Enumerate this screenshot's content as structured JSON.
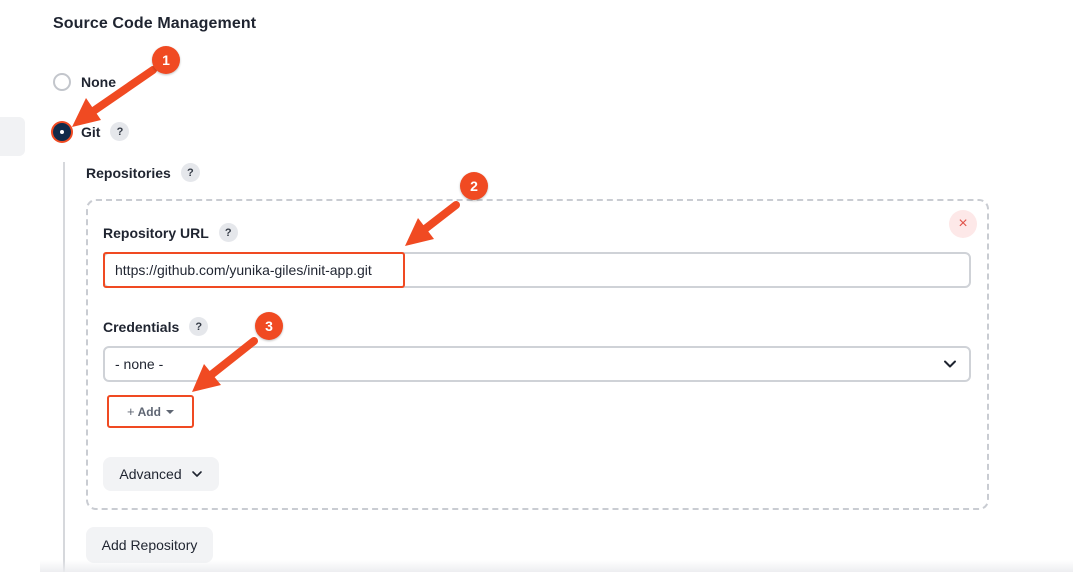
{
  "section": {
    "title": "Source Code Management"
  },
  "scm_options": [
    {
      "label": "None",
      "selected": false
    },
    {
      "label": "Git",
      "selected": true
    }
  ],
  "help_glyph": "?",
  "repositories": {
    "label": "Repositories",
    "repository_url": {
      "label": "Repository URL",
      "value": "https://github.com/yunika-giles/init-app.git"
    },
    "credentials": {
      "label": "Credentials",
      "selected": "- none -",
      "add_label": "Add"
    },
    "advanced_label": "Advanced",
    "delete_glyph": "×"
  },
  "add_repository_label": "Add Repository",
  "annotations": {
    "color": "#f04a22",
    "badges": [
      "1",
      "2",
      "3"
    ]
  }
}
